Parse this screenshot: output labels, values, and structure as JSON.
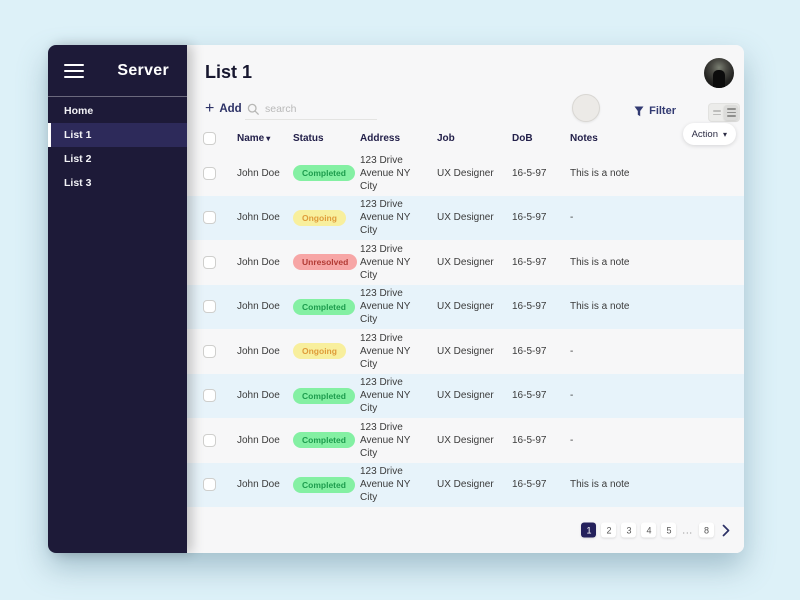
{
  "app": {
    "title": "Server"
  },
  "sidebar": {
    "items": [
      {
        "label": "Home",
        "active": false
      },
      {
        "label": "List 1",
        "active": true
      },
      {
        "label": "List 2",
        "active": false
      },
      {
        "label": "List 3",
        "active": false
      }
    ]
  },
  "header": {
    "title": "List 1"
  },
  "toolbar": {
    "add_label": "Add",
    "search_placeholder": "search",
    "filter_label": "Filter",
    "action_label": "Action"
  },
  "table": {
    "columns": {
      "name": "Name",
      "status": "Status",
      "address": "Address",
      "job": "Job",
      "dob": "DoB",
      "notes": "Notes"
    },
    "rows": [
      {
        "name": "John Doe",
        "status": "Completed",
        "status_type": "completed",
        "address": "123 Drive Avenue NY City",
        "job": "UX Designer",
        "dob": "16-5-97",
        "notes": "This is a note"
      },
      {
        "name": "John Doe",
        "status": "Ongoing",
        "status_type": "ongoing",
        "address": "123 Drive Avenue NY City",
        "job": "UX Designer",
        "dob": "16-5-97",
        "notes": "-"
      },
      {
        "name": "John Doe",
        "status": "Unresolved",
        "status_type": "unresolved",
        "address": "123 Drive Avenue NY City",
        "job": "UX Designer",
        "dob": "16-5-97",
        "notes": "This is a note"
      },
      {
        "name": "John Doe",
        "status": "Completed",
        "status_type": "completed",
        "address": "123 Drive Avenue NY City",
        "job": "UX Designer",
        "dob": "16-5-97",
        "notes": "This is a note"
      },
      {
        "name": "John Doe",
        "status": "Ongoing",
        "status_type": "ongoing",
        "address": "123 Drive Avenue NY City",
        "job": "UX Designer",
        "dob": "16-5-97",
        "notes": "-"
      },
      {
        "name": "John Doe",
        "status": "Completed",
        "status_type": "completed",
        "address": "123 Drive Avenue NY City",
        "job": "UX Designer",
        "dob": "16-5-97",
        "notes": "-"
      },
      {
        "name": "John Doe",
        "status": "Completed",
        "status_type": "completed",
        "address": "123 Drive Avenue NY City",
        "job": "UX Designer",
        "dob": "16-5-97",
        "notes": "-"
      },
      {
        "name": "John Doe",
        "status": "Completed",
        "status_type": "completed",
        "address": "123 Drive Avenue NY City",
        "job": "UX Designer",
        "dob": "16-5-97",
        "notes": "This is a note"
      }
    ]
  },
  "pagination": {
    "pages": [
      "1",
      "2",
      "3",
      "4",
      "5",
      "...",
      "8"
    ],
    "active_page": "1"
  },
  "colors": {
    "page_bg": "#ddf1f8",
    "sidebar_bg": "#1d1a38",
    "accent_navy": "#2c3166",
    "row_alt_bg": "#e7f3fa",
    "status_completed_bg": "#84f0a3",
    "status_completed_text": "#1d9c4d",
    "status_ongoing_bg": "#f8ef9d",
    "status_ongoing_text": "#df9c3a",
    "status_unresolved_bg": "#f7a6a6",
    "status_unresolved_text": "#b23a34"
  }
}
